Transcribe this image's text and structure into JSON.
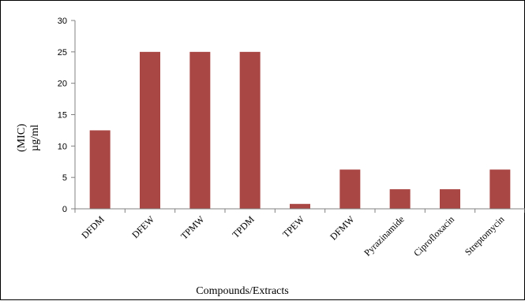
{
  "chart_data": {
    "type": "bar",
    "categories": [
      "DFDM",
      "DFEW",
      "TPMW",
      "TPDM",
      "TPEW",
      "DFMW",
      "Pyrazinamide",
      "Ciprofloxacin",
      "Streptomycin"
    ],
    "values": [
      12.5,
      25,
      25,
      25,
      0.78,
      6.25,
      3.12,
      3.12,
      6.25
    ],
    "xlabel": "Compounds/Extracts",
    "ylabel_line1": "(MIC)",
    "ylabel_line2": "µg/ml",
    "ylim": [
      0,
      30
    ],
    "yticks": [
      0,
      5,
      10,
      15,
      20,
      25,
      30
    ],
    "grid": false,
    "legend": "none",
    "bar_color": "#a94745"
  }
}
